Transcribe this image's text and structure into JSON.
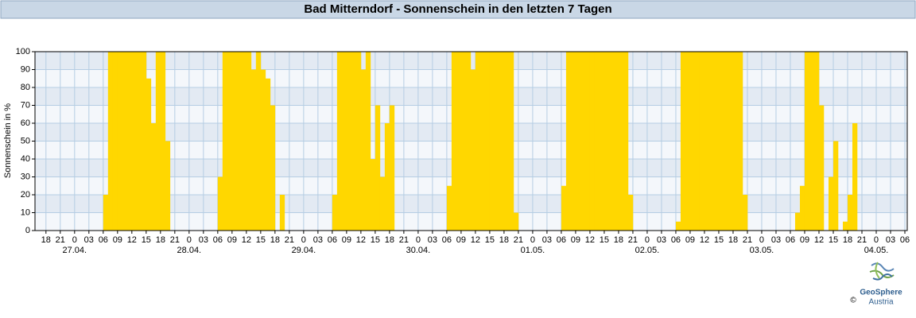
{
  "chart_data": {
    "type": "bar",
    "title": "Bad Mitterndorf - Sonnenschein in den letzten 7 Tagen",
    "y_label": "Sonnenschein in %",
    "color": "#ffd700",
    "grid": true,
    "x": [
      6,
      7,
      8,
      9,
      10,
      11,
      12,
      13,
      14,
      15,
      16,
      17,
      18,
      19,
      20,
      30,
      31,
      32,
      33,
      34,
      35,
      36,
      37,
      38,
      39,
      40,
      41,
      42,
      43,
      44,
      54,
      55,
      56,
      57,
      58,
      59,
      60,
      61,
      62,
      63,
      64,
      65,
      66,
      67,
      68,
      78,
      79,
      80,
      81,
      82,
      83,
      84,
      85,
      86,
      87,
      88,
      89,
      90,
      91,
      92,
      102,
      103,
      104,
      105,
      106,
      107,
      108,
      109,
      110,
      111,
      112,
      113,
      114,
      115,
      116,
      126,
      127,
      128,
      129,
      130,
      131,
      132,
      133,
      134,
      135,
      136,
      137,
      138,
      139,
      140,
      150,
      151,
      152,
      153,
      154,
      155,
      156,
      157,
      158,
      159,
      160,
      161,
      162,
      163,
      164
    ],
    "values": [
      20,
      100,
      100,
      100,
      100,
      100,
      100,
      100,
      100,
      85,
      60,
      100,
      100,
      50,
      0,
      30,
      100,
      100,
      100,
      100,
      100,
      100,
      90,
      100,
      90,
      85,
      70,
      0,
      20,
      0,
      20,
      100,
      100,
      100,
      100,
      100,
      90,
      100,
      40,
      70,
      30,
      60,
      70,
      0,
      0,
      25,
      100,
      100,
      100,
      100,
      90,
      100,
      100,
      100,
      100,
      100,
      100,
      100,
      100,
      10,
      25,
      100,
      100,
      100,
      100,
      100,
      100,
      100,
      100,
      100,
      100,
      100,
      100,
      100,
      20,
      5,
      100,
      100,
      100,
      100,
      100,
      100,
      100,
      100,
      100,
      100,
      100,
      100,
      100,
      20,
      0,
      10,
      25,
      100,
      100,
      100,
      70,
      0,
      30,
      50,
      0,
      5,
      20,
      60,
      0
    ],
    "xlim": [
      -8.3,
      174.5
    ],
    "ylim": [
      0,
      100
    ],
    "yticks": [
      0,
      10,
      20,
      30,
      40,
      50,
      60,
      70,
      80,
      90,
      100
    ],
    "xticks": [
      {
        "value": -6,
        "label": "18"
      },
      {
        "value": -3,
        "label": "21"
      },
      0,
      {
        "value": 3,
        "label": "03"
      },
      {
        "value": 6,
        "label": "06"
      },
      {
        "value": 9,
        "label": "09"
      },
      12,
      15,
      18,
      21,
      {
        "value": 24,
        "label": "0"
      },
      {
        "value": 27,
        "label": "03"
      },
      {
        "value": 30,
        "label": "06"
      },
      {
        "value": 33,
        "label": "09"
      },
      {
        "value": 36,
        "label": "12"
      },
      {
        "value": 39,
        "label": "15"
      },
      {
        "value": 42,
        "label": "18"
      },
      {
        "value": 45,
        "label": "21"
      },
      {
        "value": 48,
        "label": "0"
      },
      {
        "value": 51,
        "label": "03"
      },
      {
        "value": 54,
        "label": "06"
      },
      {
        "value": 57,
        "label": "09"
      },
      {
        "value": 60,
        "label": "12"
      },
      {
        "value": 63,
        "label": "15"
      },
      {
        "value": 66,
        "label": "18"
      },
      {
        "value": 69,
        "label": "21"
      },
      {
        "value": 72,
        "label": "0"
      },
      {
        "value": 75,
        "label": "03"
      },
      {
        "value": 78,
        "label": "06"
      },
      {
        "value": 81,
        "label": "09"
      },
      {
        "value": 84,
        "label": "12"
      },
      {
        "value": 87,
        "label": "15"
      },
      {
        "value": 90,
        "label": "18"
      },
      {
        "value": 93,
        "label": "21"
      },
      {
        "value": 96,
        "label": "0"
      },
      {
        "value": 99,
        "label": "03"
      },
      {
        "value": 102,
        "label": "06"
      },
      {
        "value": 105,
        "label": "09"
      },
      {
        "value": 108,
        "label": "12"
      },
      {
        "value": 111,
        "label": "15"
      },
      {
        "value": 114,
        "label": "18"
      },
      {
        "value": 117,
        "label": "21"
      },
      {
        "value": 120,
        "label": "0"
      },
      {
        "value": 123,
        "label": "03"
      },
      {
        "value": 126,
        "label": "06"
      },
      {
        "value": 129,
        "label": "09"
      },
      {
        "value": 132,
        "label": "12"
      },
      {
        "value": 135,
        "label": "15"
      },
      {
        "value": 138,
        "label": "18"
      },
      {
        "value": 141,
        "label": "21"
      },
      {
        "value": 144,
        "label": "0"
      },
      {
        "value": 147,
        "label": "03"
      },
      {
        "value": 150,
        "label": "06"
      },
      {
        "value": 153,
        "label": "09"
      },
      {
        "value": 156,
        "label": "12"
      },
      {
        "value": 159,
        "label": "15"
      },
      {
        "value": 162,
        "label": "18"
      },
      {
        "value": 165,
        "label": "21"
      },
      {
        "value": 168,
        "label": "0"
      },
      {
        "value": 171,
        "label": "03"
      },
      {
        "value": 174,
        "label": "06"
      }
    ],
    "date_ticks": [
      {
        "value": 0,
        "label": "27.04."
      },
      {
        "value": 24,
        "label": "28.04."
      },
      {
        "value": 48,
        "label": "29.04."
      },
      {
        "value": 72,
        "label": "30.04."
      },
      {
        "value": 96,
        "label": "01.05."
      },
      {
        "value": 120,
        "label": "02.05."
      },
      {
        "value": 144,
        "label": "03.05."
      },
      {
        "value": 168,
        "label": "04.05."
      }
    ]
  },
  "footer": {
    "brand": "GeoSphere",
    "sub": "Austria",
    "copyright": "©"
  }
}
